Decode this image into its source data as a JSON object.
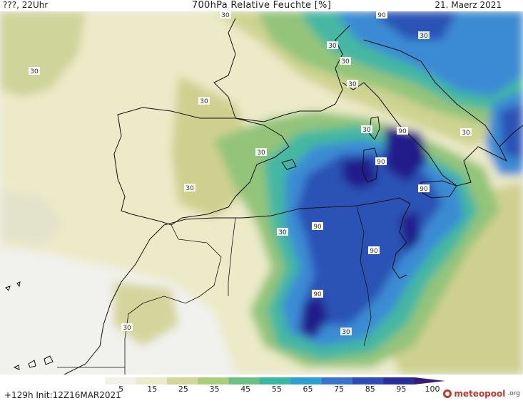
{
  "header": {
    "left": "???, 22Uhr",
    "title": "700hPa Relative Feuchte [%]",
    "date": "21. Maerz 2021"
  },
  "map": {
    "contour_labels": [
      "30",
      "90"
    ],
    "colors": {
      "dry": "#f1f1ee",
      "light": "#eae8c4",
      "yellow_green": "#cbcf8e",
      "green": "#91c377",
      "teal": "#42b7a3",
      "blue": "#3c8bd3",
      "deep_blue": "#2a4fb3",
      "navy": "#231d8a",
      "coast": "#111111"
    }
  },
  "legend": {
    "ticks": [
      "5",
      "15",
      "25",
      "35",
      "45",
      "55",
      "65",
      "75",
      "85",
      "95",
      "100"
    ],
    "colors": [
      "#ffffff",
      "#f2f2ea",
      "#ecebc9",
      "#d4d79d",
      "#a9cc7f",
      "#6dc082",
      "#3cb6a3",
      "#2f9fd0",
      "#3a73cc",
      "#2e4db4",
      "#2a2e98",
      "#3a1a7a"
    ]
  },
  "footer": {
    "run": "+129h Init:12Z16MAR2021",
    "logo": "meteopool",
    "logo_suffix": ".org"
  }
}
